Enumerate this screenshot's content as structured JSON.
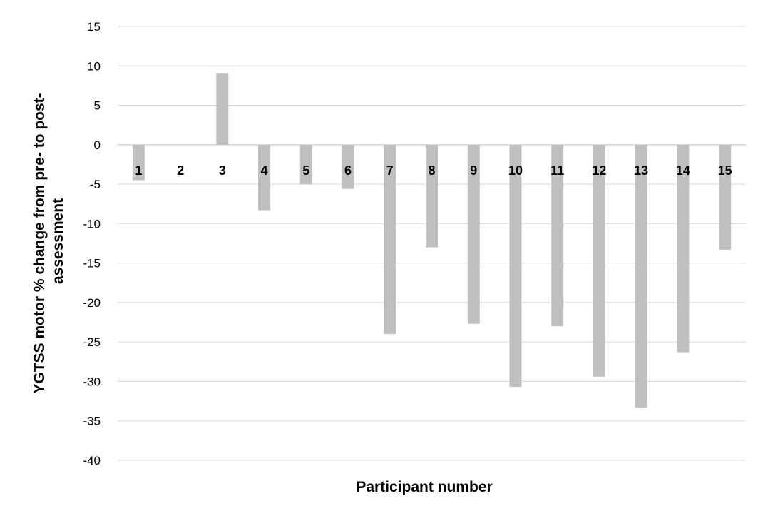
{
  "chart_data": {
    "type": "bar",
    "title": "",
    "xlabel": "Participant number",
    "ylabel": "YGTSS motor % change from pre- to post-assessment",
    "ylabel_lines": [
      "YGTSS motor % change from pre- to post-",
      "assessment"
    ],
    "categories": [
      "1",
      "2",
      "3",
      "4",
      "5",
      "6",
      "7",
      "8",
      "9",
      "10",
      "11",
      "12",
      "13",
      "14",
      "15"
    ],
    "values": [
      -4.5,
      0,
      9.1,
      -8.3,
      -5.0,
      -5.6,
      -24.0,
      -13.0,
      -22.7,
      -30.7,
      -23.0,
      -29.4,
      -33.3,
      -26.3,
      -13.3
    ],
    "ylim": [
      -40,
      15
    ],
    "yticks": [
      15,
      10,
      5,
      0,
      -5,
      -10,
      -15,
      -20,
      -25,
      -30,
      -35,
      -40
    ],
    "grid": true,
    "legend": "none",
    "bar_color": "#c0c0c0",
    "grid_color": "#d9d9d9",
    "axis_color": "#bfbfbf"
  }
}
